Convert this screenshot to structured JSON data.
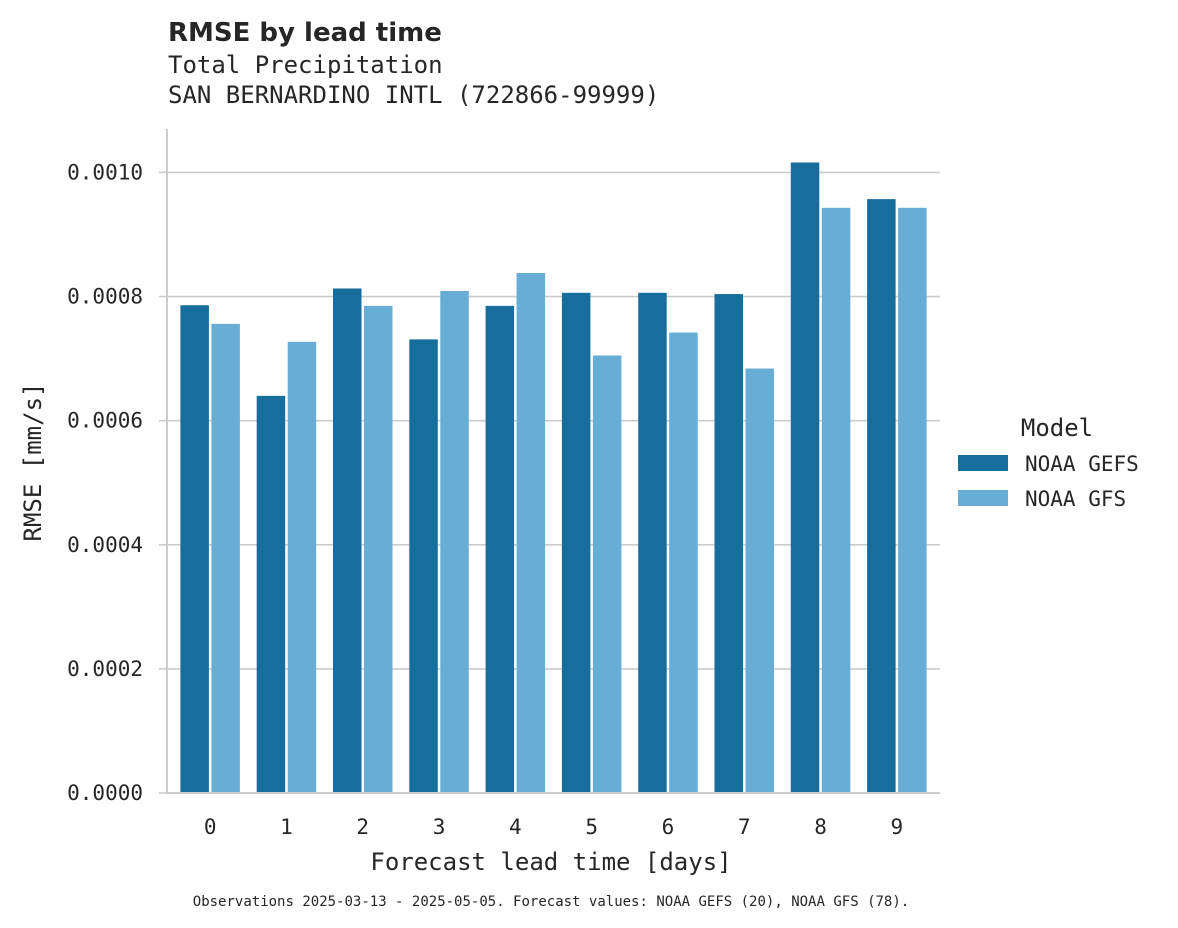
{
  "chart_data": {
    "type": "bar",
    "title": "RMSE by lead time",
    "subtitle_lines": [
      "Total Precipitation",
      "SAN BERNARDINO INTL (722866-99999)"
    ],
    "xlabel": "Forecast lead time [days]",
    "ylabel": "RMSE [mm/s]",
    "categories": [
      "0",
      "1",
      "2",
      "3",
      "4",
      "5",
      "6",
      "7",
      "8",
      "9"
    ],
    "series": [
      {
        "name": "NOAA GEFS",
        "color": "#176d9c",
        "values": [
          0.000786,
          0.00064,
          0.000813,
          0.000731,
          0.000785,
          0.000806,
          0.000806,
          0.000804,
          0.001016,
          0.000957
        ]
      },
      {
        "name": "NOAA GFS",
        "color": "#67add6",
        "values": [
          0.000756,
          0.000727,
          0.000785,
          0.000809,
          0.000838,
          0.000705,
          0.000742,
          0.000684,
          0.000943,
          0.000943
        ]
      }
    ],
    "ylim": [
      0,
      0.00107
    ],
    "yticks": [
      "0.0000",
      "0.0002",
      "0.0004",
      "0.0006",
      "0.0008",
      "0.0010"
    ],
    "ytick_values": [
      0,
      0.0002,
      0.0004,
      0.0006,
      0.0008,
      0.001
    ],
    "grid": "horizontal",
    "legend": {
      "title": "Model",
      "placement": "right"
    },
    "footnote": "Observations 2025-03-13 - 2025-05-05. Forecast values: NOAA GEFS (20), NOAA GFS (78)."
  }
}
